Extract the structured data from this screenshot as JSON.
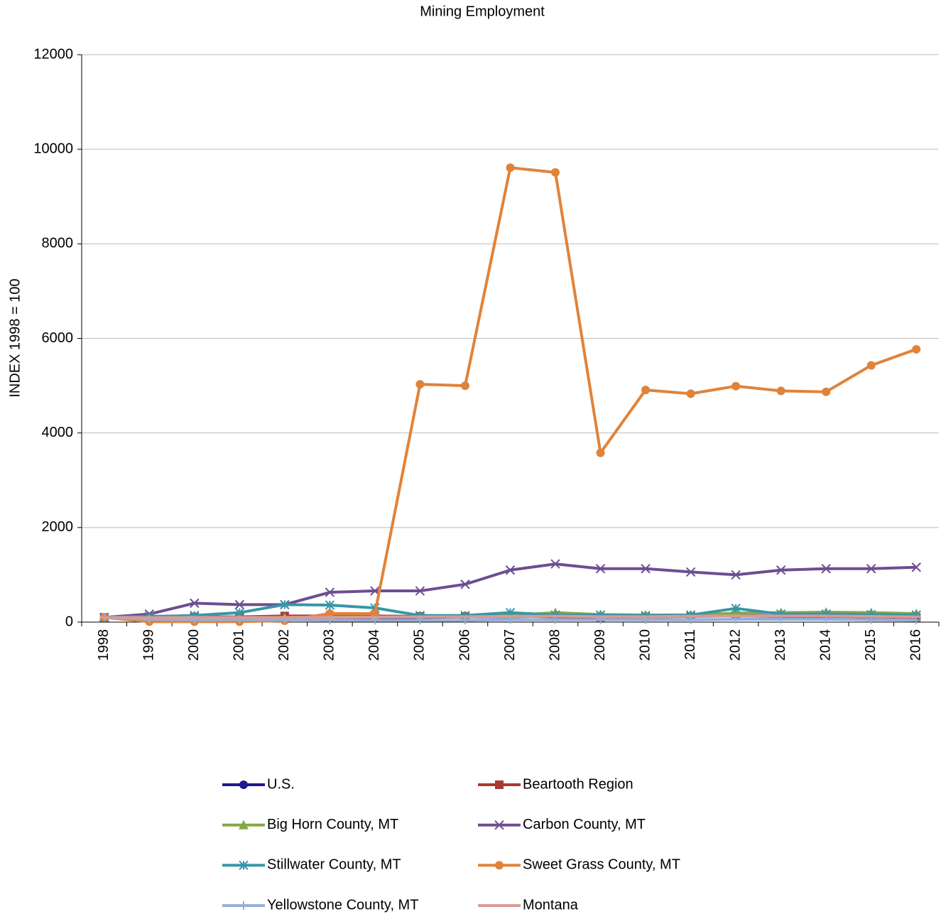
{
  "chart_data": {
    "type": "line",
    "title": "Mining Employment",
    "y_label": "INDEX 1998 = 100",
    "categories": [
      "1998",
      "1999",
      "2000",
      "2001",
      "2002",
      "2003",
      "2004",
      "2005",
      "2006",
      "2007",
      "2008",
      "2009",
      "2010",
      "2011",
      "2012",
      "2013",
      "2014",
      "2015",
      "2016"
    ],
    "ylim": [
      0,
      12000
    ],
    "yticks": [
      0,
      2000,
      4000,
      6000,
      8000,
      10000,
      12000
    ],
    "grid": true,
    "legend": "bottom",
    "series": [
      {
        "name": "U.S.",
        "color": "#1f1a8f",
        "marker": "circle",
        "values": [
          100,
          95,
          95,
          100,
          95,
          90,
          95,
          100,
          110,
          115,
          125,
          115,
          110,
          125,
          135,
          130,
          130,
          115,
          100
        ]
      },
      {
        "name": "Beartooth Region",
        "color": "#a83a32",
        "marker": "square",
        "values": [
          100,
          100,
          110,
          110,
          130,
          130,
          130,
          120,
          120,
          130,
          110,
          100,
          110,
          120,
          130,
          120,
          120,
          110,
          100
        ]
      },
      {
        "name": "Big Horn County, MT",
        "color": "#86a848",
        "marker": "triangle",
        "values": [
          100,
          90,
          90,
          90,
          100,
          110,
          110,
          110,
          110,
          140,
          200,
          160,
          150,
          150,
          190,
          200,
          210,
          200,
          180
        ]
      },
      {
        "name": "Carbon County, MT",
        "color": "#6e4d92",
        "marker": "x",
        "values": [
          100,
          170,
          400,
          370,
          370,
          630,
          660,
          660,
          800,
          1100,
          1230,
          1130,
          1130,
          1060,
          1000,
          1100,
          1130,
          1130,
          1160
        ]
      },
      {
        "name": "Stillwater County, MT",
        "color": "#3796a8",
        "marker": "asterisk",
        "values": [
          100,
          120,
          140,
          200,
          370,
          360,
          300,
          140,
          140,
          200,
          150,
          150,
          140,
          150,
          290,
          170,
          170,
          160,
          150
        ]
      },
      {
        "name": "Sweet Grass County, MT",
        "color": "#e0833a",
        "marker": "circle",
        "values": [
          100,
          10,
          10,
          10,
          30,
          180,
          180,
          5030,
          5000,
          9610,
          9510,
          3580,
          4910,
          4830,
          4990,
          4890,
          4870,
          5430,
          5770
        ]
      },
      {
        "name": "Yellowstone County, MT",
        "color": "#94aed8",
        "marker": "plus",
        "values": [
          100,
          60,
          50,
          50,
          50,
          40,
          40,
          40,
          40,
          50,
          50,
          50,
          50,
          50,
          60,
          60,
          60,
          50,
          40
        ]
      },
      {
        "name": "Montana",
        "color": "#d89a98",
        "marker": "dash",
        "values": [
          100,
          95,
          100,
          100,
          100,
          100,
          105,
          110,
          115,
          120,
          125,
          115,
          115,
          125,
          130,
          130,
          130,
          120,
          110
        ]
      }
    ]
  }
}
